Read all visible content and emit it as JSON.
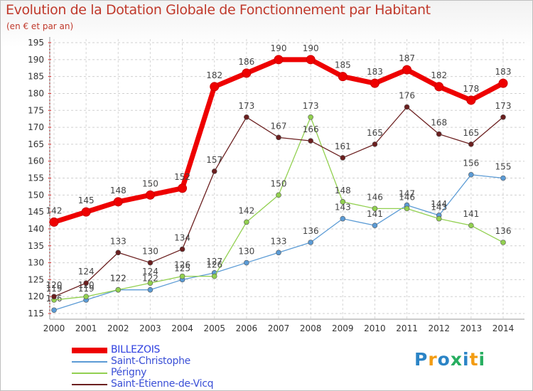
{
  "title": "Evolution de la Dotation Globale de Fonctionnement par Habitant",
  "subtitle": "(en € et par an)",
  "logo": {
    "letters": [
      "P",
      "r",
      "o",
      "x",
      "i",
      "t",
      "i"
    ],
    "colors": [
      "#2b84c6",
      "#f39c12",
      "#2b84c6",
      "#27ae60",
      "#2b84c6",
      "#f39c12",
      "#27ae60"
    ]
  },
  "chart_data": {
    "type": "line",
    "title": "Evolution de la Dotation Globale de Fonctionnement par Habitant",
    "subtitle": "(en € et par an)",
    "x": [
      2000,
      2001,
      2002,
      2003,
      2004,
      2005,
      2006,
      2007,
      2008,
      2009,
      2010,
      2011,
      2012,
      2013,
      2014
    ],
    "ylim": [
      115,
      195
    ],
    "yticks": [
      115,
      120,
      125,
      130,
      135,
      140,
      145,
      150,
      155,
      160,
      165,
      170,
      175,
      180,
      185,
      190,
      195
    ],
    "grid": "horizontal dashed",
    "legend_position": "bottom-left",
    "series": [
      {
        "name": "BILLEZOIS",
        "color": "#ee0000",
        "values": [
          142,
          145,
          148,
          150,
          152,
          182,
          186,
          190,
          190,
          185,
          183,
          187,
          182,
          178,
          183
        ]
      },
      {
        "name": "Saint-Christophe",
        "color": "#5b9bd5",
        "values": [
          116,
          119,
          122,
          122,
          125,
          127,
          130,
          133,
          136,
          143,
          141,
          147,
          144,
          156,
          155
        ]
      },
      {
        "name": "Périgny",
        "color": "#92d050",
        "values": [
          119,
          120,
          122,
          124,
          126,
          126,
          142,
          150,
          173,
          148,
          146,
          146,
          143,
          141,
          136
        ]
      },
      {
        "name": "Saint-Étienne-de-Vicq",
        "color": "#6b1f1f",
        "values": [
          120,
          124,
          133,
          130,
          134,
          157,
          173,
          167,
          166,
          161,
          165,
          176,
          168,
          165,
          173
        ]
      }
    ]
  }
}
